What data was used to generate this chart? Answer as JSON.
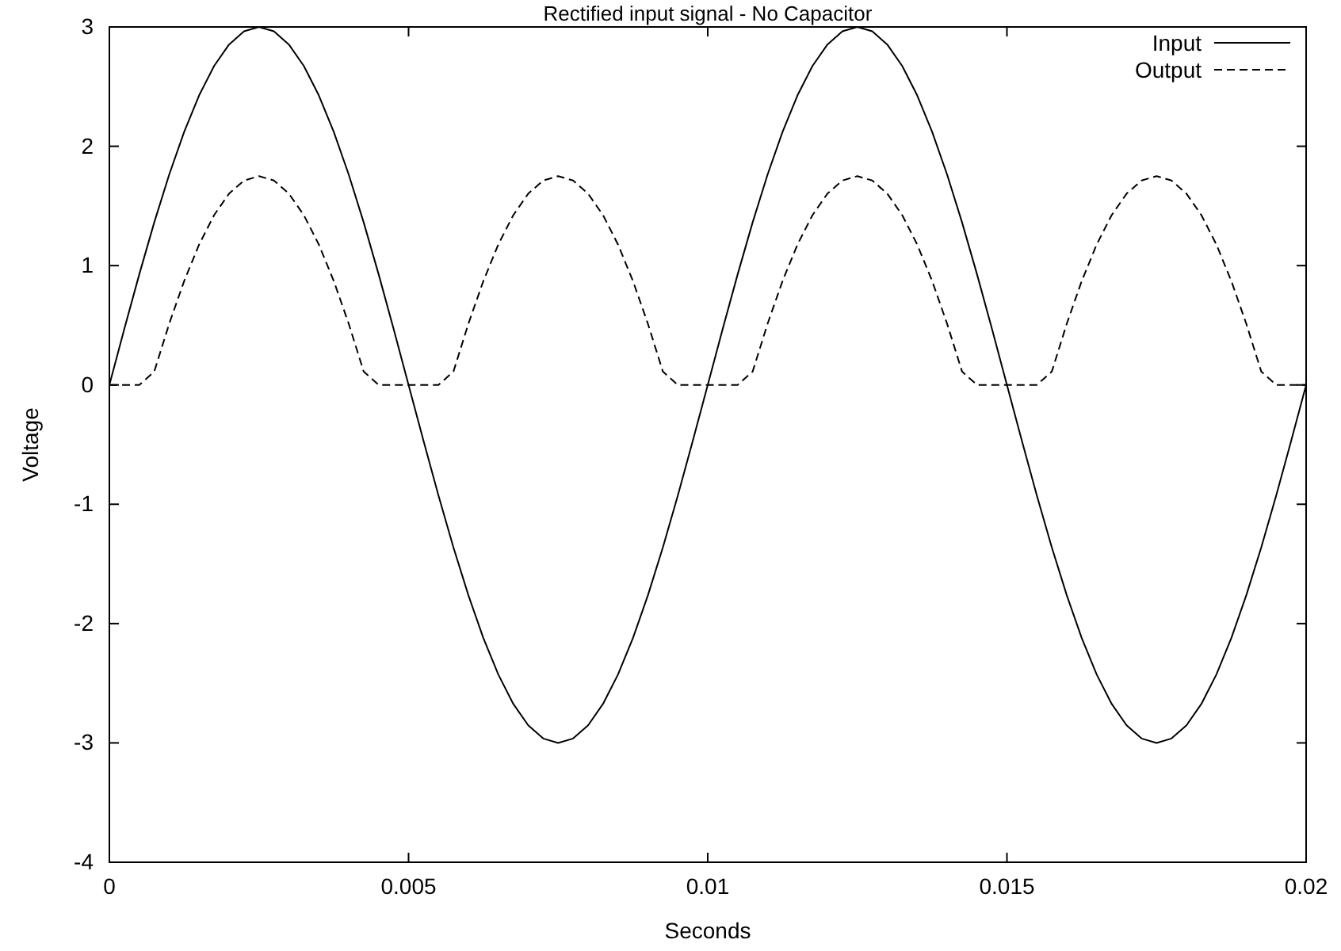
{
  "chart_data": {
    "type": "line",
    "title": "Rectified input signal - No Capacitor",
    "xlabel": "Seconds",
    "ylabel": "Voltage",
    "x": [
      0,
      0.00025,
      0.0005,
      0.00075,
      0.001,
      0.00125,
      0.0015,
      0.00175,
      0.002,
      0.00225,
      0.0025,
      0.00275,
      0.003,
      0.00325,
      0.0035,
      0.00375,
      0.004,
      0.00425,
      0.0045,
      0.00475,
      0.005,
      0.00525,
      0.0055,
      0.00575,
      0.006,
      0.00625,
      0.0065,
      0.00675,
      0.007,
      0.00725,
      0.0075,
      0.00775,
      0.008,
      0.00825,
      0.0085,
      0.00875,
      0.009,
      0.00925,
      0.0095,
      0.00975,
      0.01,
      0.01025,
      0.0105,
      0.01075,
      0.011,
      0.01125,
      0.0115,
      0.01175,
      0.012,
      0.01225,
      0.0125,
      0.01275,
      0.013,
      0.01325,
      0.0135,
      0.01375,
      0.014,
      0.01425,
      0.0145,
      0.01475,
      0.015,
      0.01525,
      0.0155,
      0.01575,
      0.016,
      0.01625,
      0.0165,
      0.01675,
      0.017,
      0.01725,
      0.0175,
      0.01775,
      0.018,
      0.01825,
      0.0185,
      0.01875,
      0.019,
      0.01925,
      0.0195,
      0.01975,
      0.02
    ],
    "series": [
      {
        "name": "Input",
        "color": "#000000",
        "line_style": "solid",
        "values": [
          0,
          0.469,
          0.927,
          1.362,
          1.763,
          2.121,
          2.427,
          2.673,
          2.853,
          2.963,
          3,
          2.963,
          2.853,
          2.673,
          2.427,
          2.121,
          1.763,
          1.362,
          0.927,
          0.469,
          0,
          -0.469,
          -0.927,
          -1.362,
          -1.763,
          -2.121,
          -2.427,
          -2.673,
          -2.853,
          -2.963,
          -3,
          -2.963,
          -2.853,
          -2.673,
          -2.427,
          -2.121,
          -1.763,
          -1.362,
          -0.927,
          -0.469,
          0,
          0.469,
          0.927,
          1.362,
          1.763,
          2.121,
          2.427,
          2.673,
          2.853,
          2.963,
          3,
          2.963,
          2.853,
          2.673,
          2.427,
          2.121,
          1.763,
          1.362,
          0.927,
          0.469,
          0,
          -0.469,
          -0.927,
          -1.362,
          -1.763,
          -2.121,
          -2.427,
          -2.673,
          -2.853,
          -2.963,
          -3,
          -2.963,
          -2.853,
          -2.673,
          -2.427,
          -2.121,
          -1.763,
          -1.362,
          -0.927,
          -0.469,
          0
        ]
      },
      {
        "name": "Output",
        "color": "#000000",
        "line_style": "dashed",
        "values": [
          0,
          0,
          0,
          0.112,
          0.513,
          0.871,
          1.177,
          1.423,
          1.603,
          1.713,
          1.75,
          1.713,
          1.603,
          1.423,
          1.177,
          0.871,
          0.513,
          0.112,
          0,
          0,
          0,
          0,
          0,
          0.112,
          0.513,
          0.871,
          1.177,
          1.423,
          1.603,
          1.713,
          1.75,
          1.713,
          1.603,
          1.423,
          1.177,
          0.871,
          0.513,
          0.112,
          0,
          0,
          0,
          0,
          0,
          0.112,
          0.513,
          0.871,
          1.177,
          1.423,
          1.603,
          1.713,
          1.75,
          1.713,
          1.603,
          1.423,
          1.177,
          0.871,
          0.513,
          0.112,
          0,
          0,
          0,
          0,
          0,
          0.112,
          0.513,
          0.871,
          1.177,
          1.423,
          1.603,
          1.713,
          1.75,
          1.713,
          1.603,
          1.423,
          1.177,
          0.871,
          0.513,
          0.112,
          0,
          0,
          0
        ]
      }
    ],
    "xlim": [
      0,
      0.02
    ],
    "xticks": [
      0,
      0.005,
      0.01,
      0.015,
      0.02
    ],
    "ylim": [
      -4,
      3
    ],
    "yticks": [
      -4,
      -3,
      -2,
      -1,
      0,
      1,
      2,
      3
    ],
    "grid": false,
    "legend": "top right",
    "marker": "none"
  }
}
